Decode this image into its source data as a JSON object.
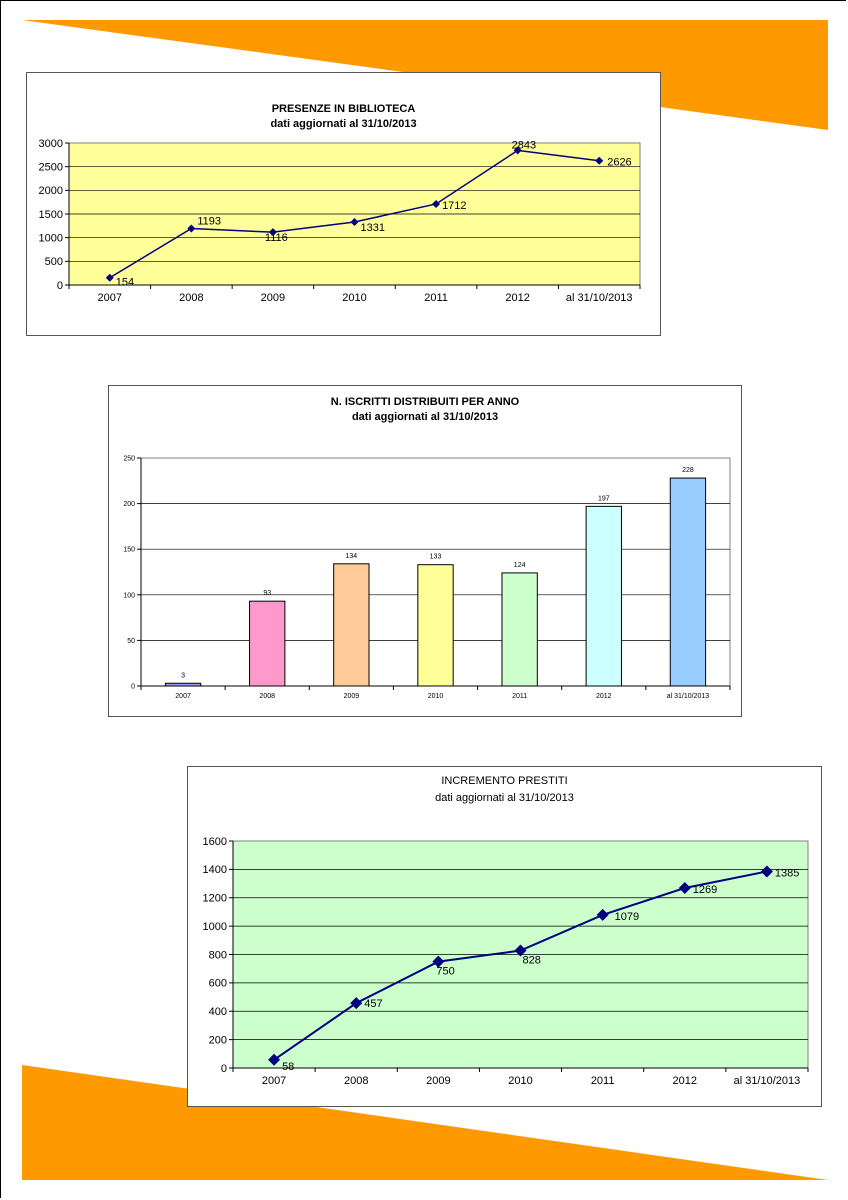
{
  "colors": {
    "accent_orange": "#FF9900",
    "plot_yellow": "#FFFF99",
    "plot_green": "#CCFFCC",
    "line_navy": "#000080"
  },
  "chart_data": [
    {
      "type": "line",
      "title": "PRESENZE IN BIBLIOTECA",
      "subtitle": "dati aggiornati al 31/10/2013",
      "categories": [
        "2007",
        "2008",
        "2009",
        "2010",
        "2011",
        "2012",
        "al 31/10/2013"
      ],
      "series": [
        {
          "values": [
            154,
            1193,
            1116,
            1331,
            1712,
            2843,
            2626
          ]
        }
      ],
      "value_labels": [
        "154",
        "1193",
        "1116",
        "1331",
        "1712",
        "2843",
        "2626"
      ],
      "yticks": [
        "0",
        "500",
        "1000",
        "1500",
        "2000",
        "2500",
        "3000"
      ],
      "ylim": [
        0,
        3000
      ],
      "grid": true,
      "legend": "none"
    },
    {
      "type": "bar",
      "title": "N. ISCRITTI DISTRIBUITI PER ANNO",
      "subtitle": "dati aggiornati al 31/10/2013",
      "categories": [
        "2007",
        "2008",
        "2009",
        "2010",
        "2011",
        "2012",
        "al 31/10/2013"
      ],
      "values": [
        3,
        93,
        134,
        133,
        124,
        197,
        228
      ],
      "value_labels": [
        "3",
        "93",
        "134",
        "133",
        "124",
        "197",
        "228"
      ],
      "bar_colors": [
        "#9999FF",
        "#FF99CC",
        "#FFCC99",
        "#FFFF99",
        "#CCFFCC",
        "#CCFFFF",
        "#99CCFF"
      ],
      "yticks": [
        "0",
        "50",
        "100",
        "150",
        "200",
        "250"
      ],
      "ylim": [
        0,
        250
      ],
      "grid": true,
      "legend": "none"
    },
    {
      "type": "line",
      "title": "INCREMENTO PRESTITI",
      "subtitle": "dati aggiornati al 31/10/2013",
      "categories": [
        "2007",
        "2008",
        "2009",
        "2010",
        "2011",
        "2012",
        "al 31/10/2013"
      ],
      "series": [
        {
          "values": [
            58,
            457,
            750,
            828,
            1079,
            1269,
            1385
          ]
        }
      ],
      "value_labels": [
        "58",
        "457",
        "750",
        "828",
        "1079",
        "1269",
        "1385"
      ],
      "yticks": [
        "0",
        "200",
        "400",
        "600",
        "800",
        "1000",
        "1200",
        "1400",
        "1600"
      ],
      "ylim": [
        0,
        1600
      ],
      "grid": true,
      "legend": "none"
    }
  ]
}
